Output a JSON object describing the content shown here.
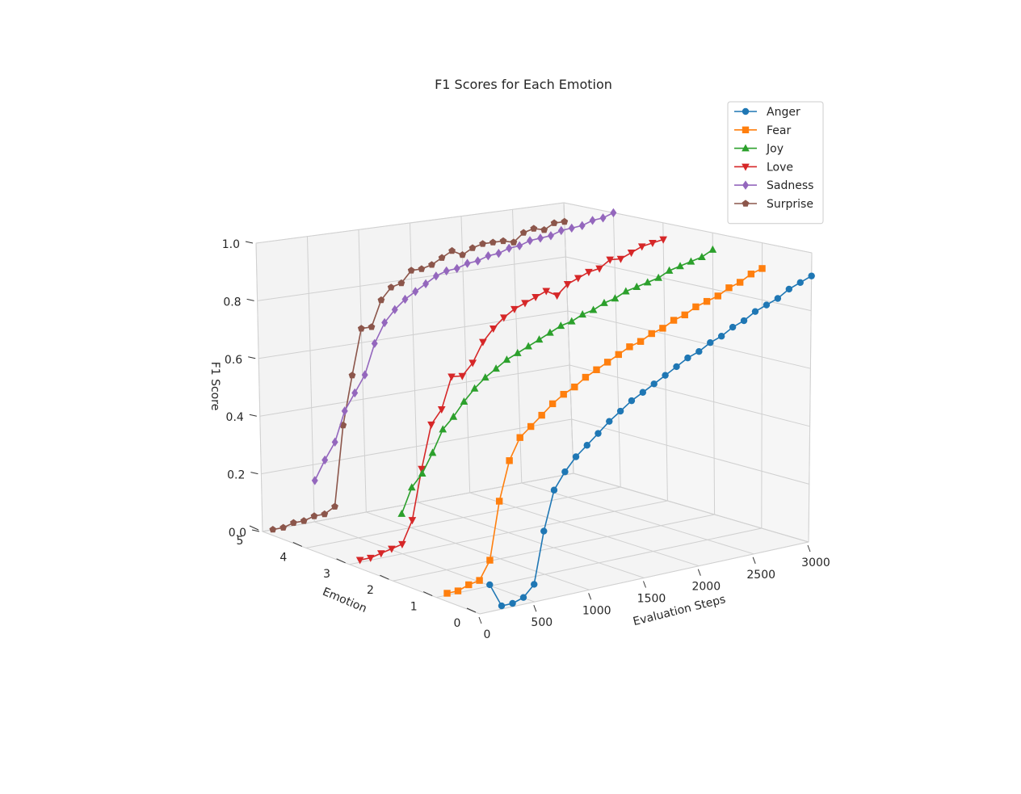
{
  "chart_data": {
    "type": "line",
    "projection": "3d",
    "title": "F1 Scores for Each Emotion",
    "xlabel": "Evaluation Steps",
    "ylabel": "Emotion",
    "zlabel": "F1 Score",
    "xlim": [
      0,
      3000
    ],
    "ylim": [
      0,
      5
    ],
    "zlim": [
      0,
      1
    ],
    "x_ticks": [
      0,
      500,
      1000,
      1500,
      2000,
      2500,
      3000
    ],
    "y_ticks": [
      0,
      1,
      2,
      3,
      4,
      5
    ],
    "z_ticks": [
      "0.0",
      "0.2",
      "0.4",
      "0.6",
      "0.8",
      "1.0"
    ],
    "grid": true,
    "legend_position": "top-right",
    "x": [
      100,
      200,
      300,
      400,
      500,
      600,
      700,
      800,
      900,
      1000,
      1100,
      1200,
      1300,
      1400,
      1500,
      1600,
      1700,
      1800,
      1900,
      2000,
      2100,
      2200,
      2300,
      2400,
      2500,
      2600,
      2700,
      2800,
      2900,
      3000
    ],
    "series": [
      {
        "name": "Anger",
        "emotion": 0,
        "color": "#1f77b4",
        "marker": "circle",
        "values": [
          0.17,
          0.02,
          0.02,
          0.04,
          0.1,
          0.38,
          0.58,
          0.65,
          0.7,
          0.73,
          0.76,
          0.79,
          0.81,
          0.83,
          0.84,
          0.85,
          0.86,
          0.87,
          0.88,
          0.88,
          0.89,
          0.89,
          0.9,
          0.9,
          0.91,
          0.91,
          0.91,
          0.92,
          0.92,
          0.92
        ]
      },
      {
        "name": "Fear",
        "emotion": 1,
        "color": "#ff7f0e",
        "marker": "square",
        "values": [
          0.01,
          0.01,
          0.03,
          0.04,
          0.13,
          0.41,
          0.59,
          0.68,
          0.71,
          0.74,
          0.77,
          0.79,
          0.8,
          0.82,
          0.83,
          0.84,
          0.85,
          0.86,
          0.86,
          0.87,
          0.87,
          0.88,
          0.88,
          0.89,
          0.89,
          0.89,
          0.9,
          0.9,
          0.91,
          0.91
        ]
      },
      {
        "name": "Joy",
        "emotion": 2,
        "color": "#2ca02c",
        "marker": "triangle-up",
        "values": [
          0.31,
          0.42,
          0.47,
          0.55,
          0.64,
          0.68,
          0.73,
          0.77,
          0.8,
          0.82,
          0.84,
          0.85,
          0.86,
          0.87,
          0.88,
          0.89,
          0.89,
          0.9,
          0.9,
          0.91,
          0.91,
          0.92,
          0.92,
          0.92,
          0.92,
          0.93,
          0.93,
          0.93,
          0.93,
          0.94
        ]
      },
      {
        "name": "Love",
        "emotion": 3,
        "color": "#d62728",
        "marker": "triangle-down",
        "values": [
          0.01,
          0.01,
          0.02,
          0.03,
          0.04,
          0.13,
          0.33,
          0.5,
          0.55,
          0.67,
          0.66,
          0.7,
          0.77,
          0.81,
          0.84,
          0.86,
          0.87,
          0.88,
          0.89,
          0.86,
          0.89,
          0.9,
          0.91,
          0.91,
          0.93,
          0.92,
          0.93,
          0.94,
          0.94,
          0.94
        ]
      },
      {
        "name": "Sadness",
        "emotion": 4,
        "color": "#9467bd",
        "marker": "diamond",
        "values": [
          0.25,
          0.32,
          0.38,
          0.49,
          0.55,
          0.61,
          0.72,
          0.79,
          0.83,
          0.86,
          0.88,
          0.9,
          0.92,
          0.93,
          0.93,
          0.94,
          0.94,
          0.95,
          0.95,
          0.96,
          0.96,
          0.97,
          0.97,
          0.97,
          0.98,
          0.98,
          0.98,
          0.99,
          0.99,
          1.0
        ]
      },
      {
        "name": "Surprise",
        "emotion": 5,
        "color": "#8c564b",
        "marker": "pentagon",
        "values": [
          0.0,
          0.0,
          0.01,
          0.01,
          0.02,
          0.02,
          0.04,
          0.32,
          0.49,
          0.65,
          0.65,
          0.74,
          0.78,
          0.79,
          0.83,
          0.83,
          0.84,
          0.86,
          0.88,
          0.86,
          0.88,
          0.89,
          0.89,
          0.89,
          0.88,
          0.91,
          0.92,
          0.91,
          0.93,
          0.93
        ]
      }
    ]
  }
}
